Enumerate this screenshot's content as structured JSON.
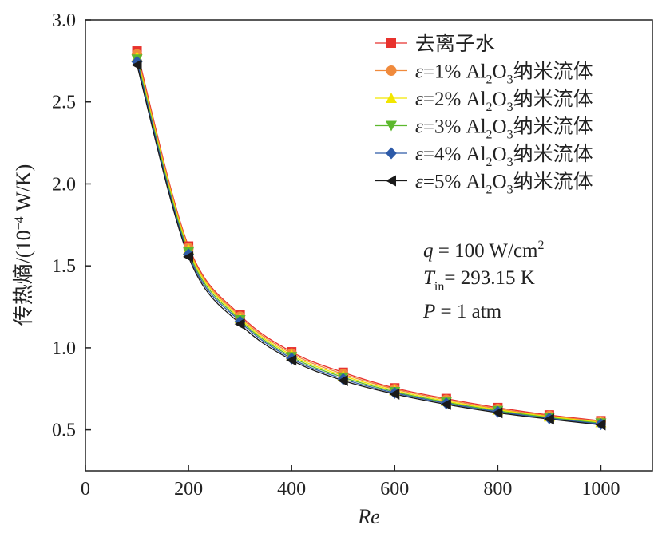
{
  "chart_data": {
    "type": "line",
    "title": "",
    "xlabel": "Re",
    "ylabel": "传热熵/(10⁻⁴ W/K)",
    "ylabel_parts": {
      "main": "传热熵/(10",
      "sup": "−4",
      "tail": " W/K)"
    },
    "xlim": [
      0,
      1100
    ],
    "ylim": [
      0.25,
      3.0
    ],
    "xticks": [
      0,
      200,
      400,
      600,
      800,
      1000
    ],
    "yticks": [
      0.5,
      1.0,
      1.5,
      2.0,
      2.5,
      3.0
    ],
    "xtick_labels": [
      "0",
      "200",
      "400",
      "600",
      "800",
      "1000"
    ],
    "ytick_labels": [
      "0.5",
      "1.0",
      "1.5",
      "2.0",
      "2.5",
      "3.0"
    ],
    "legend_position": "top-right",
    "x": [
      100,
      200,
      300,
      400,
      500,
      600,
      700,
      800,
      900,
      1000
    ],
    "series": [
      {
        "name": "去离子水",
        "label_parts": [
          "去离子水"
        ],
        "marker": "square",
        "color": "#e8322d",
        "values": [
          2.81,
          1.62,
          1.2,
          0.975,
          0.85,
          0.755,
          0.69,
          0.635,
          0.59,
          0.555
        ]
      },
      {
        "name": "ε=1% Al2O3纳米流体",
        "label_parts": [
          "ε=1% Al",
          "2",
          "O",
          "3",
          "纳米流体"
        ],
        "marker": "circle",
        "color": "#f08a3c",
        "values": [
          2.79,
          1.61,
          1.19,
          0.965,
          0.84,
          0.748,
          0.683,
          0.628,
          0.585,
          0.55
        ]
      },
      {
        "name": "ε=2% Al2O3纳米流体",
        "label_parts": [
          "ε=2% Al",
          "2",
          "O",
          "3",
          "纳米流体"
        ],
        "marker": "triangle-up",
        "color": "#f2e600",
        "values": [
          2.775,
          1.6,
          1.18,
          0.955,
          0.83,
          0.74,
          0.675,
          0.622,
          0.58,
          0.545
        ]
      },
      {
        "name": "ε=3% Al2O3纳米流体",
        "label_parts": [
          "ε=3% Al",
          "2",
          "O",
          "3",
          "纳米流体"
        ],
        "marker": "triangle-down",
        "color": "#5cb82d",
        "values": [
          2.76,
          1.585,
          1.17,
          0.945,
          0.82,
          0.732,
          0.668,
          0.616,
          0.575,
          0.54
        ]
      },
      {
        "name": "ε=4% Al2O3纳米流体",
        "label_parts": [
          "ε=4% Al",
          "2",
          "O",
          "3",
          "纳米流体"
        ],
        "marker": "diamond",
        "color": "#2d5aa8",
        "values": [
          2.745,
          1.57,
          1.16,
          0.935,
          0.81,
          0.725,
          0.662,
          0.61,
          0.57,
          0.535
        ]
      },
      {
        "name": "ε=5% Al2O3纳米流体",
        "label_parts": [
          "ε=5% Al",
          "2",
          "O",
          "3",
          "纳米流体"
        ],
        "marker": "triangle-left",
        "color": "#1a1a1a",
        "values": [
          2.725,
          1.555,
          1.145,
          0.925,
          0.8,
          0.718,
          0.655,
          0.604,
          0.565,
          0.53
        ]
      }
    ],
    "annotations": {
      "q": {
        "var": "q",
        "text": " = 100 W/cm",
        "sup": "2"
      },
      "tin": {
        "var": "T",
        "sub": "in",
        "text": "= 293.15 K"
      },
      "p": {
        "var": "P",
        "text": " = 1 atm"
      }
    }
  }
}
